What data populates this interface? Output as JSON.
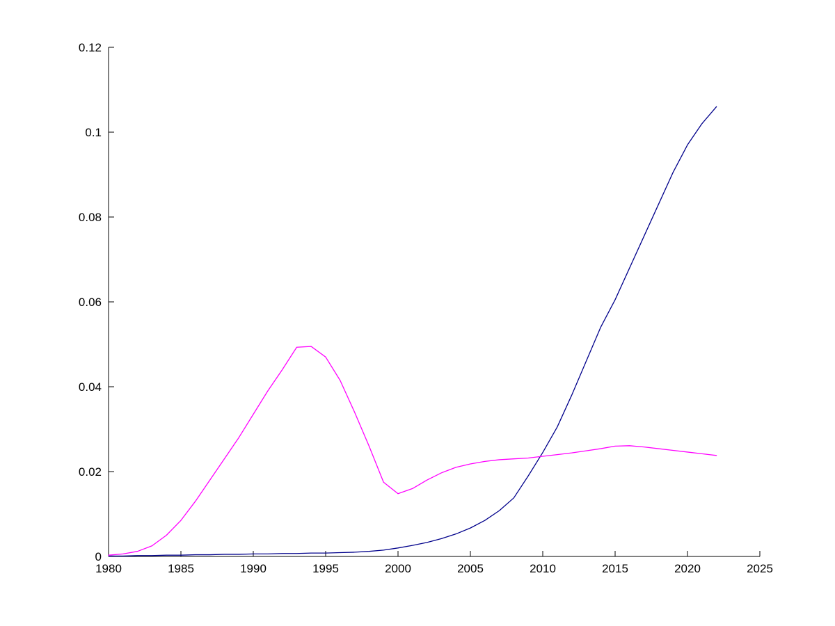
{
  "chart_data": {
    "type": "line",
    "title": "",
    "xlabel": "",
    "ylabel": "",
    "grid": false,
    "legend": null,
    "xlim": [
      1980,
      2025
    ],
    "ylim": [
      0,
      0.12
    ],
    "xtick_values": [
      1980,
      1985,
      1990,
      1995,
      2000,
      2005,
      2010,
      2015,
      2020,
      2025
    ],
    "xtick_labels": [
      "1980",
      "1985",
      "1990",
      "1995",
      "2000",
      "2005",
      "2010",
      "2015",
      "2020",
      "2025"
    ],
    "ytick_values": [
      0,
      0.02,
      0.04,
      0.06,
      0.08,
      0.1,
      0.12
    ],
    "ytick_labels": [
      "0",
      "0.02",
      "0.04",
      "0.06",
      "0.08",
      "0.1",
      "0.12"
    ],
    "x": [
      1980,
      1981,
      1982,
      1983,
      1984,
      1985,
      1986,
      1987,
      1988,
      1989,
      1990,
      1991,
      1992,
      1993,
      1994,
      1995,
      1996,
      1997,
      1998,
      1999,
      2000,
      2001,
      2002,
      2003,
      2004,
      2005,
      2006,
      2007,
      2008,
      2009,
      2010,
      2011,
      2012,
      2013,
      2014,
      2015,
      2016,
      2017,
      2018,
      2019,
      2020,
      2021,
      2022
    ],
    "series": [
      {
        "name": "dark-blue-line",
        "color": "#00008B",
        "values": [
          0.0001,
          0.0001,
          0.0002,
          0.0002,
          0.0003,
          0.0003,
          0.0004,
          0.0004,
          0.0005,
          0.0005,
          0.0006,
          0.0006,
          0.0007,
          0.0007,
          0.0008,
          0.0008,
          0.0009,
          0.001,
          0.0012,
          0.0015,
          0.002,
          0.0026,
          0.0033,
          0.0042,
          0.0053,
          0.0067,
          0.0085,
          0.0108,
          0.0138,
          0.019,
          0.0245,
          0.0305,
          0.038,
          0.046,
          0.054,
          0.0605,
          0.068,
          0.0755,
          0.083,
          0.0905,
          0.097,
          0.102,
          0.106
        ]
      },
      {
        "name": "magenta-line",
        "color": "#FF00FF",
        "values": [
          0.0003,
          0.0006,
          0.0012,
          0.0025,
          0.005,
          0.0085,
          0.013,
          0.018,
          0.023,
          0.028,
          0.0335,
          0.039,
          0.044,
          0.0493,
          0.0495,
          0.047,
          0.0415,
          0.034,
          0.026,
          0.0175,
          0.0148,
          0.016,
          0.018,
          0.0197,
          0.021,
          0.0218,
          0.0224,
          0.0228,
          0.023,
          0.0232,
          0.0236,
          0.024,
          0.0244,
          0.0249,
          0.0254,
          0.026,
          0.0261,
          0.0258,
          0.0254,
          0.025,
          0.0246,
          0.0242,
          0.0238
        ]
      }
    ],
    "axis_color": "#000000"
  }
}
